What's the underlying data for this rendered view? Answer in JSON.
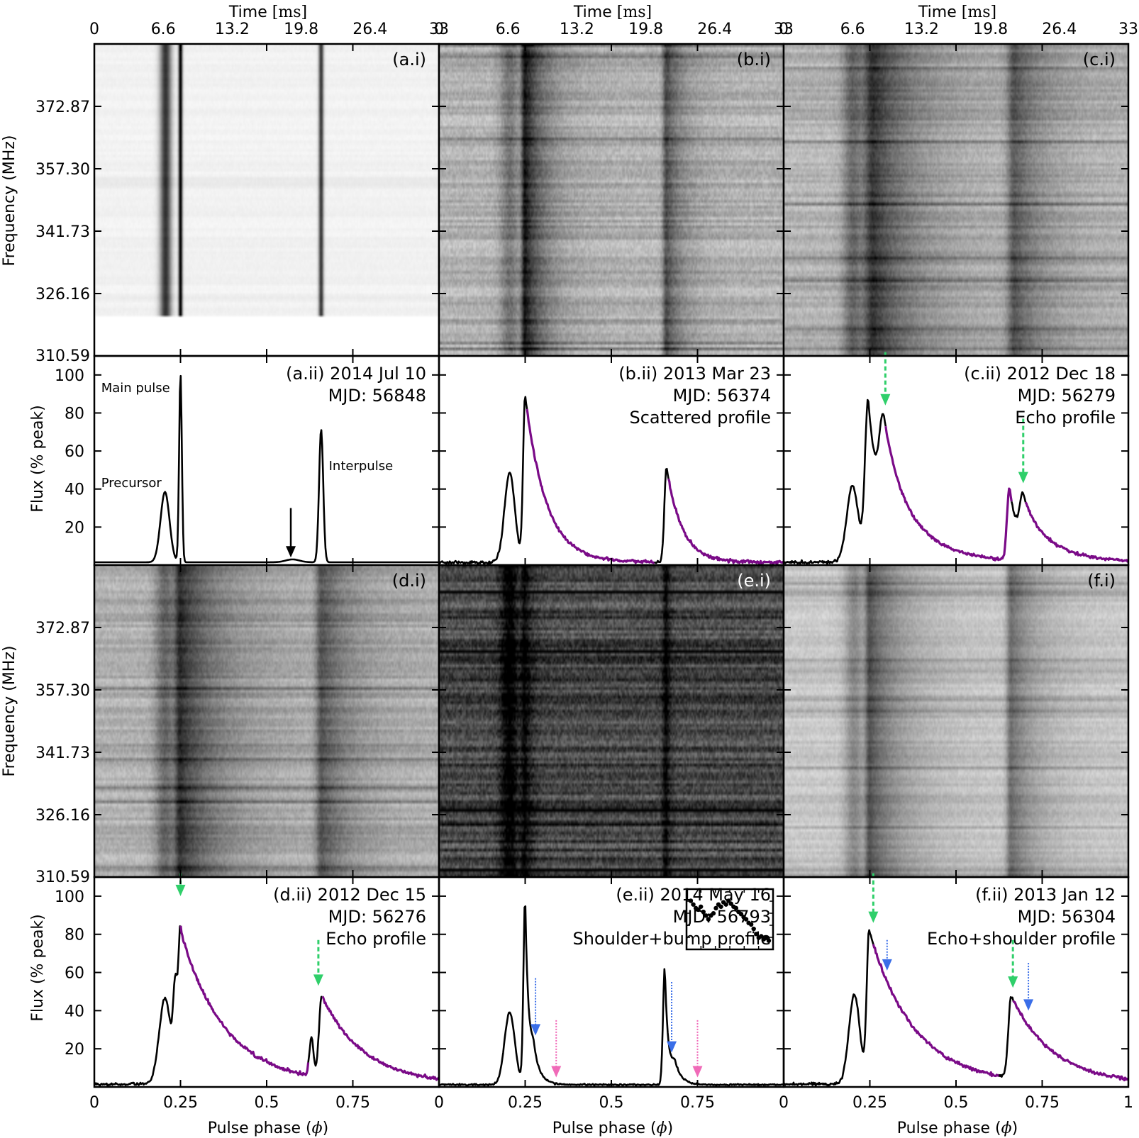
{
  "figure": {
    "time_axis_label": "Time",
    "time_axis_unit": "[ms]",
    "phase_axis_label": "Pulse phase",
    "phase_symbol": "ϕ",
    "freq_axis_label": "Frequency (MHz)",
    "flux_axis_label": "Flux (% peak)"
  },
  "chart_data": {
    "type": "multi-panel",
    "time_axis": {
      "range": [
        0,
        33
      ],
      "ticks": [
        "0",
        "6.6",
        "13.2",
        "19.8",
        "26.4",
        "33"
      ]
    },
    "phase_axis": {
      "range": [
        0,
        1
      ],
      "ticks_first": [
        "0",
        "0.25",
        "0.5",
        "0.75"
      ],
      "ticks_last": [
        "0",
        "0.25",
        "0.5",
        "0.75",
        "1"
      ]
    },
    "frequency_axis": {
      "range": [
        310.59,
        388.44
      ],
      "ticks": [
        "310.59",
        "326.16",
        "341.73",
        "357.30",
        "372.87"
      ]
    },
    "flux_axis": {
      "range": [
        0,
        110
      ],
      "ticks": [
        "20",
        "40",
        "60",
        "80",
        "100"
      ]
    },
    "panels": [
      {
        "id": "a",
        "waterfall_label": "(a.i)",
        "profile_label": "(a.ii) 2014 Jul 10",
        "mjd": "MJD: 56848",
        "profile_type": "",
        "waterfall": {
          "background": 0.05,
          "noise": 0.02,
          "data_min_freq": 320.5,
          "components": [
            {
              "phase": 0.207,
              "width": 0.012,
              "amp": 0.75
            },
            {
              "phase": 0.25,
              "width": 0.004,
              "amp": 1.0
            },
            {
              "phase": 0.658,
              "width": 0.005,
              "amp": 0.75
            }
          ]
        },
        "profile": {
          "noise": 0.003,
          "baseline": 1.5,
          "components": [
            {
              "phase": 0.205,
              "amplitude": 37,
              "width": 0.013,
              "scatter_tau": 0
            },
            {
              "phase": 0.25,
              "amplitude": 99,
              "width": 0.004,
              "scatter_tau": 0
            },
            {
              "phase": 0.658,
              "amplitude": 70,
              "width": 0.006,
              "scatter_tau": 0
            },
            {
              "phase": 0.575,
              "amplitude": 1.5,
              "width": 0.02,
              "scatter_tau": 0
            }
          ]
        },
        "annotations": [
          {
            "text": "Main pulse",
            "phase": 0.02,
            "flux": 91
          },
          {
            "text": "Precursor",
            "phase": 0.02,
            "flux": 41
          },
          {
            "text": "Interpulse",
            "phase": 0.67,
            "flux": 50
          }
        ],
        "arrows": [
          {
            "phase": 0.57,
            "from": 30,
            "to": 4,
            "style": "black"
          }
        ],
        "inset": false
      },
      {
        "id": "b",
        "waterfall_label": "(b.i)",
        "profile_label": "(b.ii) 2013 Mar 23",
        "mjd": "MJD: 56374",
        "profile_type": "Scattered profile",
        "waterfall": {
          "background": 0.3,
          "noise": 0.12,
          "components": [
            {
              "phase": 0.205,
              "width": 0.02,
              "amp": 0.25
            },
            {
              "phase": 0.25,
              "width": 0.008,
              "amp": 0.6,
              "tau": 0.06
            },
            {
              "phase": 0.66,
              "width": 0.008,
              "amp": 0.4,
              "tau": 0.05
            }
          ]
        },
        "profile": {
          "noise": 0.8,
          "baseline": 1.5,
          "scatter_start": [
            0.255,
            0.665
          ],
          "components": [
            {
              "phase": 0.205,
              "amplitude": 47,
              "width": 0.015,
              "scatter_tau": 0
            },
            {
              "phase": 0.25,
              "amplitude": 88,
              "width": 0.006,
              "scatter_tau": 0.06
            },
            {
              "phase": 0.66,
              "amplitude": 50,
              "width": 0.006,
              "scatter_tau": 0.045
            },
            {
              "phase": 0.36,
              "amplitude": 0,
              "width": 0.1,
              "scatter_tau": 0
            }
          ]
        },
        "annotations": [],
        "arrows": [],
        "inset": false
      },
      {
        "id": "c",
        "waterfall_label": "(c.i)",
        "profile_label": "(c.ii) 2012 Dec 18",
        "mjd": "MJD: 56279",
        "profile_type": "Echo profile",
        "waterfall": {
          "background": 0.3,
          "noise": 0.1,
          "components": [
            {
              "phase": 0.2,
              "width": 0.02,
              "amp": 0.3
            },
            {
              "phase": 0.26,
              "width": 0.02,
              "amp": 0.5,
              "tau": 0.12
            },
            {
              "phase": 0.67,
              "width": 0.015,
              "amp": 0.35,
              "tau": 0.09
            }
          ]
        },
        "profile": {
          "noise": 0.8,
          "baseline": 1.5,
          "scatter_start": [
            0.295,
            0.7
          ],
          "components": [
            {
              "phase": 0.2,
              "amplitude": 40,
              "width": 0.017,
              "scatter_tau": 0
            },
            {
              "phase": 0.245,
              "amplitude": 85,
              "width": 0.009,
              "scatter_tau": 0.04
            },
            {
              "phase": 0.29,
              "amplitude": 50,
              "width": 0.012,
              "scatter_tau": 0.1
            },
            {
              "phase": 0.655,
              "amplitude": 38,
              "width": 0.007,
              "scatter_tau": 0.03
            },
            {
              "phase": 0.695,
              "amplitude": 25,
              "width": 0.01,
              "scatter_tau": 0.09
            }
          ]
        },
        "annotations": [],
        "arrows": [
          {
            "phase": 0.295,
            "from": 112,
            "to": 84,
            "style": "green"
          },
          {
            "phase": 0.695,
            "from": 77,
            "to": 43,
            "style": "green"
          }
        ],
        "inset": false
      },
      {
        "id": "d",
        "waterfall_label": "(d.i)",
        "profile_label": "(d.ii) 2012 Dec 15",
        "mjd": "MJD: 56276",
        "profile_type": "Echo profile",
        "waterfall": {
          "background": 0.3,
          "noise": 0.1,
          "components": [
            {
              "phase": 0.205,
              "width": 0.02,
              "amp": 0.3
            },
            {
              "phase": 0.25,
              "width": 0.012,
              "amp": 0.5,
              "tau": 0.12
            },
            {
              "phase": 0.66,
              "width": 0.012,
              "amp": 0.35,
              "tau": 0.09
            }
          ]
        },
        "profile": {
          "noise": 0.8,
          "baseline": 1.5,
          "scatter_start": [
            0.25,
            0.66
          ],
          "components": [
            {
              "phase": 0.205,
              "amplitude": 45,
              "width": 0.017,
              "scatter_tau": 0
            },
            {
              "phase": 0.235,
              "amplitude": 45,
              "width": 0.006,
              "scatter_tau": 0
            },
            {
              "phase": 0.25,
              "amplitude": 80,
              "width": 0.006,
              "scatter_tau": 0.13
            },
            {
              "phase": 0.63,
              "amplitude": 20,
              "width": 0.006,
              "scatter_tau": 0
            },
            {
              "phase": 0.66,
              "amplitude": 43,
              "width": 0.008,
              "scatter_tau": 0.12
            }
          ]
        },
        "annotations": [],
        "arrows": [
          {
            "phase": 0.25,
            "from": 112,
            "to": 100,
            "style": "green"
          },
          {
            "phase": 0.65,
            "from": 77,
            "to": 53,
            "style": "green"
          }
        ],
        "inset": false
      },
      {
        "id": "e",
        "waterfall_label": "(e.i)",
        "profile_label": "(e.ii) 2014 May 16",
        "mjd": "MJD: 56793",
        "profile_type": "Shoulder+bump profile",
        "waterfall": {
          "background": 0.72,
          "noise": 0.2,
          "components": [
            {
              "phase": 0.205,
              "width": 0.018,
              "amp": 0.35
            },
            {
              "phase": 0.25,
              "width": 0.008,
              "amp": 0.3,
              "tau": 0.02
            },
            {
              "phase": 0.66,
              "width": 0.008,
              "amp": 0.3,
              "tau": 0.01
            }
          ]
        },
        "profile": {
          "noise": 0.4,
          "baseline": 1.2,
          "components": [
            {
              "phase": 0.205,
              "amplitude": 38,
              "width": 0.015,
              "scatter_tau": 0
            },
            {
              "phase": 0.25,
              "amplitude": 98,
              "width": 0.005,
              "scatter_tau": 0.01
            },
            {
              "phase": 0.275,
              "amplitude": 15,
              "width": 0.01,
              "scatter_tau": 0.02
            },
            {
              "phase": 0.655,
              "amplitude": 62,
              "width": 0.005,
              "scatter_tau": 0.01
            },
            {
              "phase": 0.685,
              "amplitude": 10,
              "width": 0.01,
              "scatter_tau": 0.02
            }
          ]
        },
        "annotations": [],
        "arrows": [
          {
            "phase": 0.28,
            "from": 57,
            "to": 27,
            "style": "blue"
          },
          {
            "phase": 0.34,
            "from": 35,
            "to": 5,
            "style": "pink"
          },
          {
            "phase": 0.675,
            "from": 55,
            "to": 18,
            "style": "blue"
          },
          {
            "phase": 0.75,
            "from": 35,
            "to": 5,
            "style": "pink"
          }
        ],
        "inset": true,
        "inset_points": [
          8,
          7.5,
          7,
          6.8,
          7.2,
          6.5,
          6,
          5.5,
          6,
          6.3,
          7,
          7.5,
          7.2,
          7.8,
          7.5,
          8,
          7.6,
          7.2,
          7,
          6.5,
          6.2,
          5.8,
          5.5,
          5,
          4.8,
          4.2,
          3.5,
          3,
          3.2,
          2.8,
          3,
          2.6
        ]
      },
      {
        "id": "f",
        "waterfall_label": "(f.i)",
        "profile_label": "(f.ii) 2013 Jan 12",
        "mjd": "MJD: 56304",
        "profile_type": "Echo+shoulder profile",
        "waterfall": {
          "background": 0.22,
          "noise": 0.08,
          "components": [
            {
              "phase": 0.205,
              "width": 0.02,
              "amp": 0.25
            },
            {
              "phase": 0.25,
              "width": 0.01,
              "amp": 0.45,
              "tau": 0.1
            },
            {
              "phase": 0.66,
              "width": 0.01,
              "amp": 0.35,
              "tau": 0.08
            }
          ]
        },
        "profile": {
          "noise": 0.8,
          "baseline": 1.5,
          "scatter_start": [
            0.26,
            0.665
          ],
          "components": [
            {
              "phase": 0.205,
              "amplitude": 47,
              "width": 0.016,
              "scatter_tau": 0
            },
            {
              "phase": 0.248,
              "amplitude": 80,
              "width": 0.007,
              "scatter_tau": 0.13
            },
            {
              "phase": 0.66,
              "amplitude": 43,
              "width": 0.008,
              "scatter_tau": 0.12
            }
          ]
        },
        "annotations": [],
        "arrows": [
          {
            "phase": 0.26,
            "from": 112,
            "to": 86,
            "style": "green"
          },
          {
            "phase": 0.3,
            "from": 77,
            "to": 61,
            "style": "blue"
          },
          {
            "phase": 0.665,
            "from": 77,
            "to": 52,
            "style": "green"
          },
          {
            "phase": 0.71,
            "from": 65,
            "to": 40,
            "style": "blue"
          }
        ],
        "inset": false
      }
    ]
  }
}
